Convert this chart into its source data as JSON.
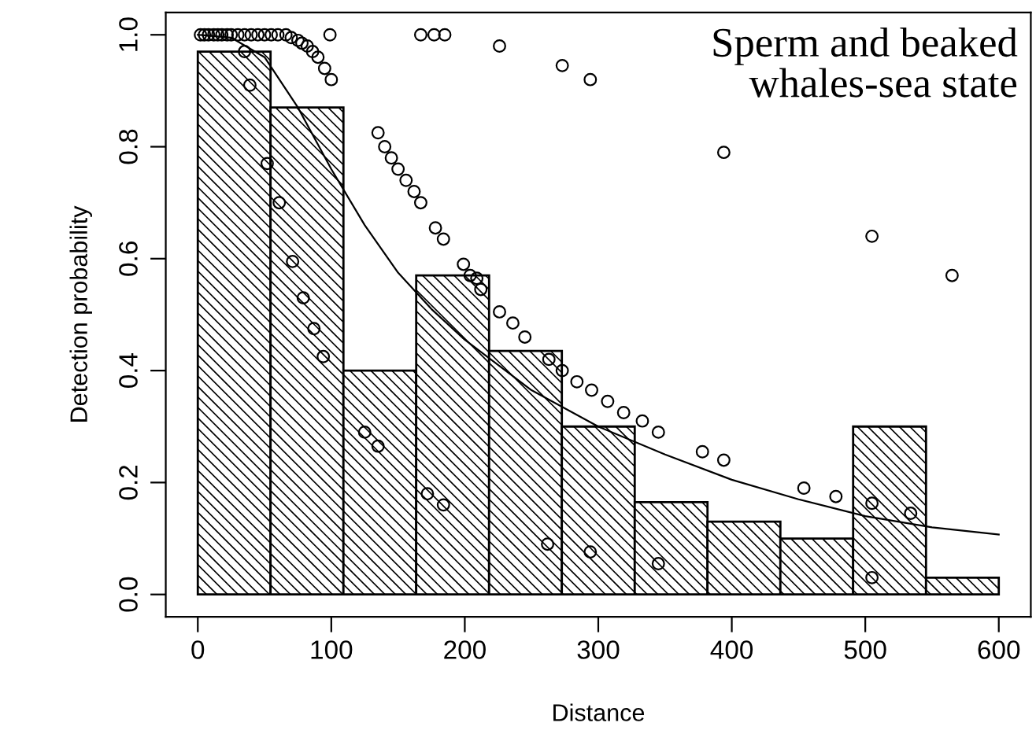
{
  "chart_data": {
    "type": "histogram",
    "xlabel": "Distance",
    "ylabel": "Detection probability",
    "annotations": [
      "Sperm and beaked\nwhales-sea state"
    ],
    "bins": [
      0,
      54.5,
      109.1,
      163.6,
      218.2,
      272.7,
      327.3,
      381.8,
      436.4,
      490.9,
      545.5,
      600
    ],
    "values": [
      0.97,
      0.87,
      0.4,
      0.57,
      0.435,
      0.3,
      0.165,
      0.13,
      0.1,
      0.3,
      0.03
    ],
    "color": "#000000",
    "series": [
      {
        "type": "line",
        "color": "#000000",
        "x": [
          0,
          25,
          50,
          75,
          100,
          125,
          150,
          175,
          200,
          250,
          300,
          350,
          400,
          450,
          500,
          550,
          600
        ],
        "values": [
          1.0,
          0.995,
          0.96,
          0.87,
          0.76,
          0.66,
          0.575,
          0.51,
          0.455,
          0.365,
          0.3,
          0.25,
          0.205,
          0.17,
          0.14,
          0.12,
          0.107
        ]
      },
      {
        "type": "scatter",
        "marker": "circle",
        "color": "#000000",
        "x": [
          2,
          5,
          8,
          12,
          15,
          18,
          22,
          25,
          30,
          35,
          40,
          45,
          50,
          55,
          60,
          66,
          70,
          75,
          78,
          82,
          86,
          90,
          95,
          100,
          99,
          35,
          39,
          52,
          61,
          71,
          79,
          87,
          94,
          125,
          135,
          135,
          140,
          145,
          150,
          156,
          162,
          167,
          178,
          184,
          199,
          204,
          209,
          212,
          226,
          236,
          245,
          263,
          273,
          284,
          295,
          307,
          319,
          333,
          345,
          378,
          394,
          454,
          478,
          505,
          534,
          172,
          184,
          167,
          177,
          185,
          226,
          273,
          294,
          394,
          505,
          565,
          262,
          294,
          345,
          505
        ],
        "values": [
          1.0,
          1.0,
          1.0,
          1.0,
          1.0,
          1.0,
          1.0,
          1.0,
          1.0,
          1.0,
          1.0,
          1.0,
          1.0,
          1.0,
          1.0,
          1.0,
          0.995,
          0.99,
          0.985,
          0.98,
          0.97,
          0.96,
          0.94,
          0.92,
          1.0,
          0.97,
          0.91,
          0.77,
          0.7,
          0.595,
          0.53,
          0.475,
          0.425,
          0.29,
          0.265,
          0.825,
          0.8,
          0.78,
          0.76,
          0.74,
          0.72,
          0.7,
          0.655,
          0.635,
          0.59,
          0.57,
          0.565,
          0.545,
          0.505,
          0.485,
          0.46,
          0.42,
          0.4,
          0.38,
          0.365,
          0.345,
          0.325,
          0.31,
          0.29,
          0.255,
          0.24,
          0.19,
          0.175,
          0.163,
          0.145,
          0.18,
          0.16,
          1.0,
          1.0,
          1.0,
          0.98,
          0.945,
          0.92,
          0.79,
          0.64,
          0.57,
          0.09,
          0.076,
          0.055,
          0.03
        ]
      }
    ],
    "xlim": [
      -24,
      624
    ],
    "ylim": [
      -0.04,
      1.04
    ],
    "xticks": [
      0,
      100,
      200,
      300,
      400,
      500,
      600
    ],
    "yticks": [
      {
        "value": 0,
        "label": "0.0"
      },
      {
        "value": 0.2,
        "label": "0.2"
      },
      {
        "value": 0.4,
        "label": "0.4"
      },
      {
        "value": 0.6,
        "label": "0.6"
      },
      {
        "value": 0.8,
        "label": "0.8"
      },
      {
        "value": 1.0,
        "label": "1.0"
      }
    ],
    "grid": false,
    "legend": false
  }
}
